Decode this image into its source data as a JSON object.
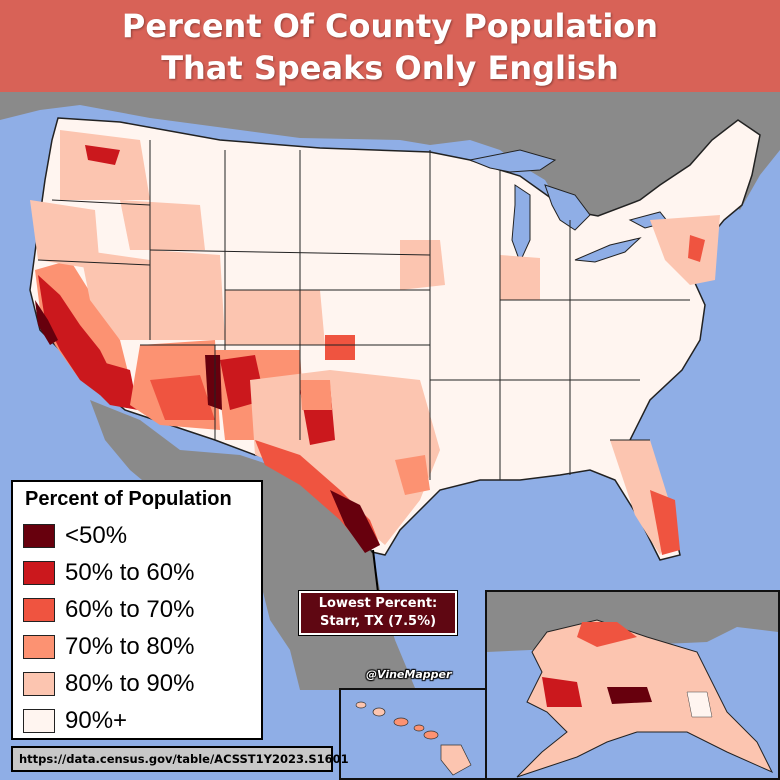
{
  "title": {
    "line1": "Percent Of County Population",
    "line2": "That Speaks Only English"
  },
  "legend": {
    "title": "Percent of Population",
    "items": [
      {
        "label": "<50%",
        "color": "#67000d"
      },
      {
        "label": "50% to 60%",
        "color": "#cb181d"
      },
      {
        "label": "60% to 70%",
        "color": "#ef5440"
      },
      {
        "label": "70% to 80%",
        "color": "#fc9272"
      },
      {
        "label": "80% to 90%",
        "color": "#fcc5b0"
      },
      {
        "label": "90%+",
        "color": "#fff5f0"
      }
    ]
  },
  "callout": {
    "line1": "Lowest Percent:",
    "line2": "Starr, TX (7.5%)"
  },
  "credit": "@VineMapper",
  "source": "https://data.census.gov/table/ACSST1Y2023.S1601",
  "colors": {
    "water": "#8faee6",
    "land_outside": "#8a8a8a",
    "banner": "#e25c50",
    "callout_bg": "#5f0712"
  }
}
